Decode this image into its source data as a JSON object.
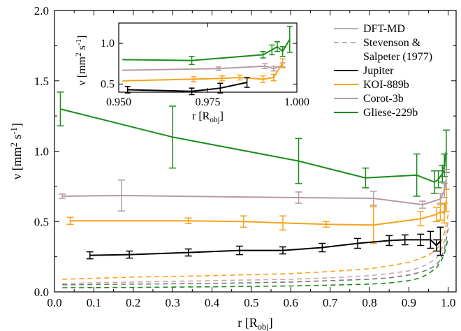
{
  "chart_data": [
    {
      "type": "line",
      "panel": "main",
      "xlabel": {
        "text": "r [R",
        "sub": "obj",
        "end": "]"
      },
      "ylabel": {
        "text": "ν [mm",
        "sup1": "2",
        "mid": " s",
        "sup2": "-1",
        "end": "]"
      },
      "xlim": [
        0.0,
        1.02
      ],
      "ylim": [
        0.0,
        2.0
      ],
      "xticks": [
        0.0,
        0.1,
        0.2,
        0.3,
        0.4,
        0.5,
        0.6,
        0.7,
        0.8,
        0.9,
        1.0
      ],
      "xtick_labels": [
        "0.0",
        "0.1",
        "0.2",
        "0.3",
        "0.4",
        "0.5",
        "0.6",
        "0.7",
        "0.8",
        "0.9",
        "1.0"
      ],
      "yticks": [
        0.0,
        0.5,
        1.0,
        1.5,
        2.0
      ],
      "ytick_labels": [
        "0.0",
        "0.5",
        "1.0",
        "1.5",
        "2.0"
      ],
      "grid": false,
      "legend_position": "top-right",
      "series": [
        {
          "key": "gliese_dft",
          "name": "Gliese-229b",
          "color": "#1a8c1a",
          "style": "solid",
          "x": [
            0.015,
            0.3,
            0.62,
            0.79,
            0.92,
            0.965,
            0.975,
            0.985,
            0.99,
            0.995
          ],
          "y": [
            1.3,
            1.1,
            0.93,
            0.81,
            0.83,
            0.78,
            0.8,
            0.84,
            0.9,
            1.0
          ],
          "err": [
            0.12,
            0.22,
            0.16,
            0.07,
            0.15,
            0.08,
            0.06,
            0.06,
            0.08,
            0.15
          ]
        },
        {
          "key": "corot_dft",
          "name": "Corot-3b",
          "color": "#b89a9e",
          "style": "solid",
          "x": [
            0.02,
            0.17,
            0.62,
            0.81,
            0.935,
            0.98,
            0.99,
            0.995
          ],
          "y": [
            0.68,
            0.685,
            0.67,
            0.665,
            0.62,
            0.66,
            0.72,
            0.8
          ],
          "err": [
            0.015,
            0.11,
            0.04,
            0.05,
            0.025,
            0.04,
            0.05,
            0.07
          ]
        },
        {
          "key": "koi_dft",
          "name": "KOI-889b",
          "color": "#f5a31a",
          "style": "solid",
          "x": [
            0.04,
            0.34,
            0.48,
            0.58,
            0.69,
            0.81,
            0.93,
            0.97,
            0.98,
            0.99,
            0.995
          ],
          "y": [
            0.505,
            0.505,
            0.5,
            0.49,
            0.48,
            0.475,
            0.52,
            0.55,
            0.57,
            0.56,
            0.65
          ],
          "err": [
            0.025,
            0.02,
            0.04,
            0.05,
            0.02,
            0.13,
            0.05,
            0.05,
            0.06,
            0.07,
            0.08
          ]
        },
        {
          "key": "jupiter_dft",
          "name": "Jupiter",
          "color": "#000000",
          "style": "solid",
          "x": [
            0.09,
            0.19,
            0.34,
            0.47,
            0.58,
            0.68,
            0.77,
            0.85,
            0.89,
            0.93,
            0.955,
            0.97,
            0.98
          ],
          "y": [
            0.26,
            0.265,
            0.28,
            0.295,
            0.295,
            0.315,
            0.345,
            0.365,
            0.37,
            0.37,
            0.37,
            0.33,
            0.36
          ],
          "err": [
            0.025,
            0.025,
            0.025,
            0.03,
            0.025,
            0.03,
            0.035,
            0.035,
            0.035,
            0.04,
            0.06,
            0.04,
            0.1
          ]
        },
        {
          "key": "koi_ss",
          "color": "#f5a31a",
          "style": "dashed",
          "x": [
            0.02,
            0.2,
            0.4,
            0.6,
            0.7,
            0.8,
            0.85,
            0.9,
            0.93,
            0.95,
            0.97,
            0.98,
            0.99,
            1.0
          ],
          "y": [
            0.09,
            0.105,
            0.115,
            0.13,
            0.145,
            0.165,
            0.185,
            0.21,
            0.24,
            0.26,
            0.3,
            0.34,
            0.42,
            0.55
          ]
        },
        {
          "key": "corot_ss",
          "color": "#c9a8ab",
          "style": "dashed",
          "x": [
            0.02,
            0.2,
            0.4,
            0.6,
            0.7,
            0.8,
            0.85,
            0.9,
            0.93,
            0.95,
            0.97,
            0.98,
            0.99,
            1.0
          ],
          "y": [
            0.06,
            0.07,
            0.08,
            0.09,
            0.1,
            0.115,
            0.13,
            0.15,
            0.175,
            0.2,
            0.24,
            0.28,
            0.36,
            0.5
          ]
        },
        {
          "key": "jupiter_ss",
          "color": "#777777",
          "style": "dashed",
          "x": [
            0.02,
            0.2,
            0.4,
            0.6,
            0.7,
            0.8,
            0.85,
            0.9,
            0.93,
            0.95,
            0.97,
            0.98,
            0.99,
            1.0
          ],
          "y": [
            0.05,
            0.055,
            0.06,
            0.07,
            0.08,
            0.09,
            0.1,
            0.12,
            0.14,
            0.16,
            0.19,
            0.23,
            0.3,
            0.45
          ]
        },
        {
          "key": "gliese_ss",
          "color": "#1a8c1a",
          "style": "dashed",
          "x": [
            0.02,
            0.2,
            0.4,
            0.6,
            0.7,
            0.8,
            0.85,
            0.9,
            0.93,
            0.95,
            0.97,
            0.98,
            0.99,
            1.0
          ],
          "y": [
            0.03,
            0.032,
            0.036,
            0.042,
            0.048,
            0.055,
            0.063,
            0.08,
            0.1,
            0.13,
            0.17,
            0.21,
            0.27,
            0.38
          ]
        }
      ],
      "legend": [
        {
          "label": "DFT-MD",
          "color": "#b3b3b3",
          "style": "solid"
        },
        {
          "label": "Stevenson &",
          "label2": "Salpeter (1977)",
          "color": "#b3b3b3",
          "style": "dashed"
        },
        {
          "label": "Jupiter",
          "color": "#000000",
          "style": "solid"
        },
        {
          "label": "KOI-889b",
          "color": "#f5a31a",
          "style": "solid"
        },
        {
          "label": "Corot-3b",
          "color": "#b89a9e",
          "style": "solid"
        },
        {
          "label": "Gliese-229b",
          "color": "#1a8c1a",
          "style": "solid"
        }
      ]
    },
    {
      "type": "line",
      "panel": "inset",
      "xlabel": {
        "text": "r [R",
        "sub": "obj",
        "end": "]"
      },
      "ylabel": {
        "text": "ν [mm",
        "sup1": "2",
        "mid": " s",
        "sup2": "-1",
        "end": "]"
      },
      "xlim": [
        0.95,
        1.0
      ],
      "ylim": [
        0.4,
        1.25
      ],
      "xticks": [
        0.95,
        0.975,
        1.0
      ],
      "xtick_labels": [
        "0.950",
        "0.975",
        "1.000"
      ],
      "yticks": [
        0.5,
        1.0
      ],
      "ytick_labels": [
        "0.5",
        "1.0"
      ],
      "series": [
        {
          "key": "gliese_in",
          "color": "#1a8c1a",
          "x": [
            0.951,
            0.9705,
            0.9905,
            0.993,
            0.9945,
            0.996,
            0.998
          ],
          "y": [
            0.8,
            0.79,
            0.86,
            0.92,
            0.96,
            0.9,
            1.05
          ],
          "err": [
            0,
            0.05,
            0.04,
            0.06,
            0.06,
            0.06,
            0.16
          ]
        },
        {
          "key": "corot_in",
          "color": "#b89a9e",
          "x": [
            0.951,
            0.978,
            0.991,
            0.9935,
            0.996
          ],
          "y": [
            0.67,
            0.69,
            0.72,
            0.69,
            0.73
          ],
          "err": [
            0,
            0.02,
            0.03,
            0.03,
            0.03
          ]
        },
        {
          "key": "koi_in",
          "color": "#f5a31a",
          "x": [
            0.951,
            0.971,
            0.979,
            0.984,
            0.9905,
            0.9935,
            0.996
          ],
          "y": [
            0.54,
            0.56,
            0.57,
            0.58,
            0.56,
            0.58,
            0.76
          ],
          "err": [
            0,
            0.03,
            0.03,
            0.03,
            0.04,
            0.04,
            0.05
          ]
        },
        {
          "key": "jupiter_in",
          "color": "#000000",
          "x": [
            0.9525,
            0.9705,
            0.9785,
            0.986
          ],
          "y": [
            0.43,
            0.41,
            0.45,
            0.52
          ],
          "err": [
            0.04,
            0.04,
            0.06,
            0.06
          ]
        }
      ]
    }
  ]
}
